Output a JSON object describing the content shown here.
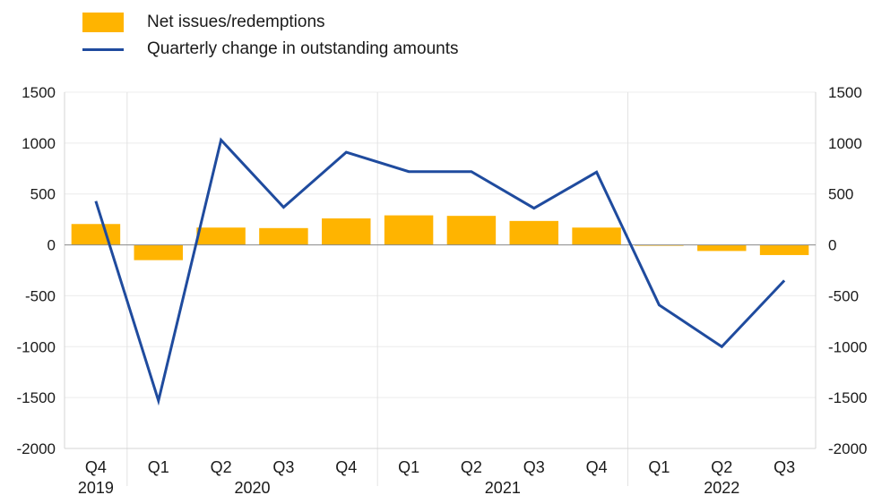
{
  "chart_data": {
    "type": "bar",
    "title": "",
    "xlabel": "",
    "ylabel": "",
    "ylim": [
      -2000,
      1500
    ],
    "yticks": [
      1500,
      1000,
      500,
      0,
      -500,
      -1000,
      -1500,
      -2000
    ],
    "ytick_labels": [
      "1500",
      "1000",
      "500",
      "0",
      "-500",
      "-1000",
      "-1500",
      "-2000"
    ],
    "grid": true,
    "legend_position": "top-left",
    "categories": [
      "Q4",
      "Q1",
      "Q2",
      "Q3",
      "Q4",
      "Q1",
      "Q2",
      "Q3",
      "Q4",
      "Q1",
      "Q2",
      "Q3"
    ],
    "year_groups": [
      {
        "label": "2019",
        "start": 0,
        "end": 0
      },
      {
        "label": "2020",
        "start": 1,
        "end": 4
      },
      {
        "label": "2021",
        "start": 5,
        "end": 8
      },
      {
        "label": "2022",
        "start": 9,
        "end": 11
      }
    ],
    "series": [
      {
        "name": "Net issues/redemptions",
        "type": "bar",
        "color": "#ffb400",
        "values": [
          205,
          -150,
          170,
          165,
          260,
          290,
          285,
          235,
          170,
          -5,
          -60,
          -100
        ]
      },
      {
        "name": "Quarterly change in outstanding amounts",
        "type": "line",
        "color": "#1f4b9e",
        "values": [
          430,
          -1530,
          1030,
          370,
          910,
          720,
          720,
          360,
          715,
          -590,
          -1000,
          -350
        ]
      }
    ]
  }
}
